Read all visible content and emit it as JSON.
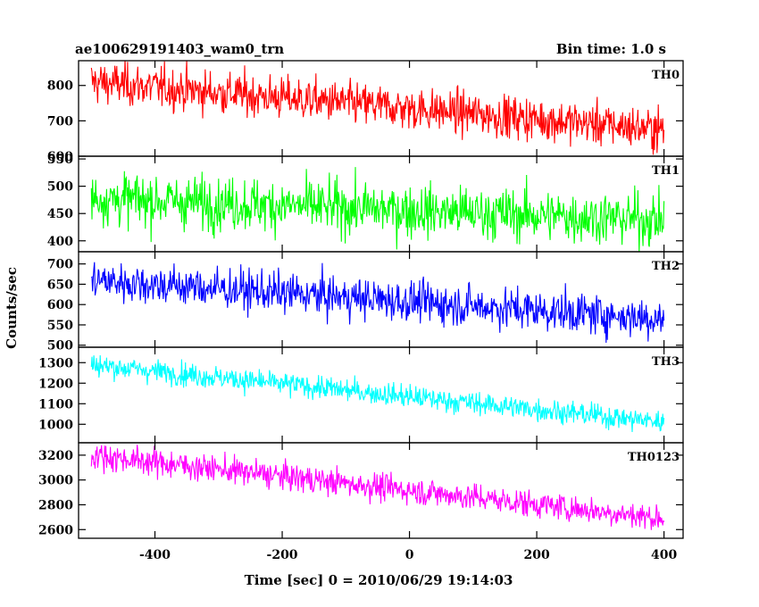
{
  "header": {
    "title": "ae100629191403_wam0_trn",
    "bin_time": "Bin time: 1.0 s"
  },
  "chart_data": {
    "type": "line",
    "title": "ae100629191403_wam0_trn",
    "subtitle": "Bin time: 1.0 s",
    "xlabel": "Time [sec] 0 = 2010/06/29 19:14:03",
    "ylabel": "Counts/sec",
    "xlim": [
      -520,
      430
    ],
    "x_ticks": [
      -400,
      -200,
      0,
      200,
      400
    ],
    "x_range": [
      -500,
      400
    ],
    "grid": false,
    "panels": [
      {
        "name": "TH0",
        "color": "#ff0000",
        "ylim": [
          600,
          870
        ],
        "y_ticks": [
          600,
          700,
          800
        ],
        "trend_start": 810,
        "trend_end": 675,
        "noise": 30
      },
      {
        "name": "TH1",
        "color": "#00ff00",
        "ylim": [
          380,
          555
        ],
        "y_ticks": [
          400,
          450,
          500,
          550
        ],
        "trend_start": 478,
        "trend_end": 438,
        "noise": 24
      },
      {
        "name": "TH2",
        "color": "#0000ff",
        "ylim": [
          495,
          730
        ],
        "y_ticks": [
          500,
          550,
          600,
          650,
          700
        ],
        "trend_start": 660,
        "trend_end": 565,
        "noise": 25
      },
      {
        "name": "TH3",
        "color": "#00ffff",
        "ylim": [
          910,
          1375
        ],
        "y_ticks": [
          1000,
          1100,
          1200,
          1300
        ],
        "trend_start": 1290,
        "trend_end": 1010,
        "noise": 28
      },
      {
        "name": "TH0123",
        "color": "#ff00ff",
        "ylim": [
          2530,
          3300
        ],
        "y_ticks": [
          2600,
          2800,
          3000,
          3200
        ],
        "trend_start": 3200,
        "trend_end": 2690,
        "noise": 55
      }
    ]
  }
}
